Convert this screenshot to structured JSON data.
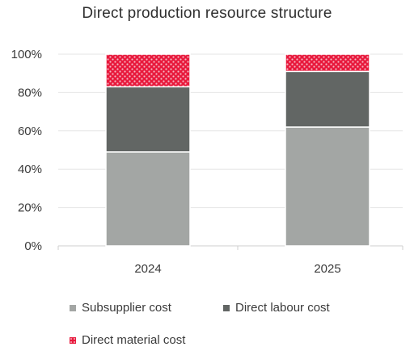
{
  "chart_data": {
    "type": "bar",
    "stacked": true,
    "title": "Direct production resource structure",
    "xlabel": "",
    "ylabel": "",
    "categories": [
      "2024",
      "2025"
    ],
    "ylim": [
      0,
      100
    ],
    "yticks": [
      "0%",
      "20%",
      "40%",
      "60%",
      "80%",
      "100%"
    ],
    "ytick_values": [
      0,
      20,
      40,
      60,
      80,
      100
    ],
    "series": [
      {
        "name": "Subsupplier cost",
        "values": [
          49,
          62
        ],
        "color": "#a3a6a4",
        "pattern": "solid"
      },
      {
        "name": "Direct labour cost",
        "values": [
          34,
          29
        ],
        "color": "#626664",
        "pattern": "solid"
      },
      {
        "name": "Direct material cost",
        "values": [
          17,
          9
        ],
        "color": "#e8193c",
        "pattern": "dotted"
      }
    ],
    "grid": true,
    "legend_position": "bottom"
  }
}
